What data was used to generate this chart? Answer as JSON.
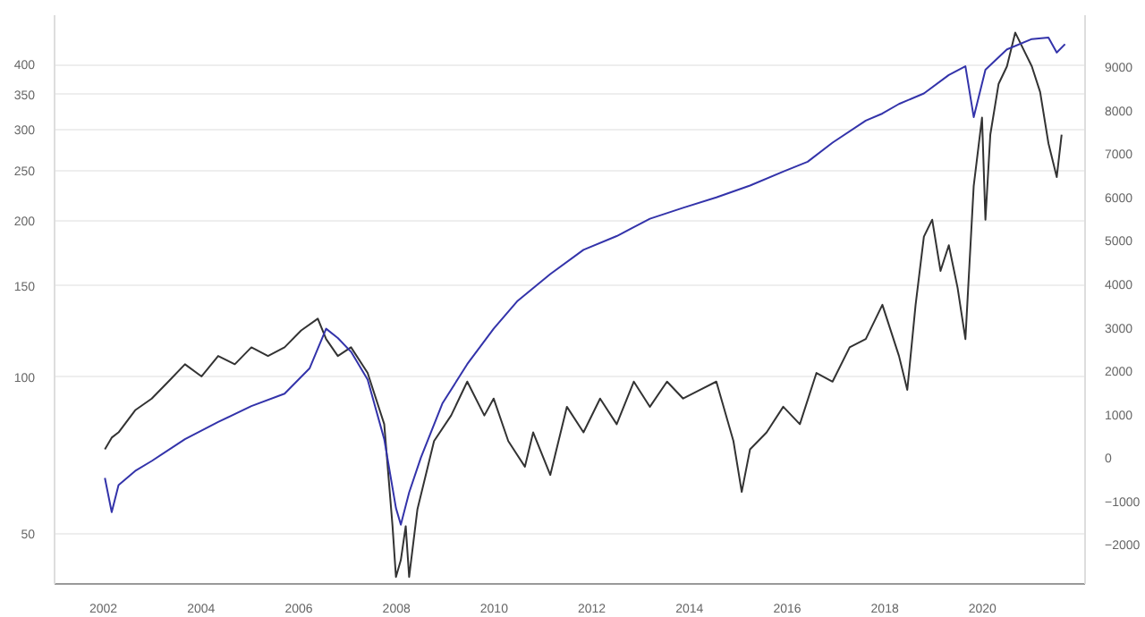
{
  "chart_data": {
    "type": "line",
    "log": "y",
    "grid": "y",
    "xlim": [
      2001.0,
      2022.1
    ],
    "xticks": [
      2002,
      2004,
      2006,
      2008,
      2010,
      2012,
      2014,
      2016,
      2018,
      2020
    ],
    "ylim": [
      40,
      498
    ],
    "yticks": [
      50,
      100,
      150,
      200,
      250,
      300,
      350,
      400
    ],
    "y2lim": [
      -2900,
      10200
    ],
    "y2ticks": [
      -2000,
      -1000,
      0,
      1000,
      2000,
      3000,
      4000,
      5000,
      6000,
      7000,
      8000,
      9000
    ],
    "series": [
      {
        "color": "#333333",
        "axis": "y2",
        "x": [
          2002.03,
          2002.17,
          2002.31,
          2002.65,
          2002.99,
          2003.33,
          2003.67,
          2004.01,
          2004.35,
          2004.69,
          2005.03,
          2005.37,
          2005.71,
          2006.05,
          2006.39,
          2006.56,
          2006.8,
          2007.07,
          2007.41,
          2007.75,
          2007.92,
          2007.99,
          2008.09,
          2008.19,
          2008.26,
          2008.43,
          2008.77,
          2009.12,
          2009.45,
          2009.8,
          2009.99,
          2010.29,
          2010.63,
          2010.8,
          2011.15,
          2011.49,
          2011.83,
          2012.17,
          2012.51,
          2012.86,
          2013.19,
          2013.54,
          2013.87,
          2014.22,
          2014.55,
          2014.9,
          2015.07,
          2015.24,
          2015.58,
          2015.92,
          2016.26,
          2016.6,
          2016.93,
          2017.28,
          2017.61,
          2017.95,
          2018.29,
          2018.46,
          2018.63,
          2018.8,
          2018.97,
          2019.14,
          2019.31,
          2019.49,
          2019.65,
          2019.82,
          2019.99,
          2020.06,
          2020.16,
          2020.33,
          2020.5,
          2020.67,
          2020.84,
          2021.01,
          2021.18,
          2021.35,
          2021.52,
          2021.62
        ],
        "values": [
          200,
          470,
          590,
          1100,
          1370,
          1760,
          2160,
          1880,
          2350,
          2160,
          2550,
          2350,
          2550,
          2940,
          3210,
          2740,
          2350,
          2550,
          1960,
          780,
          -1570,
          -2740,
          -2350,
          -1570,
          -2740,
          -1180,
          390,
          980,
          1760,
          980,
          1370,
          390,
          -200,
          590,
          -390,
          1180,
          590,
          1370,
          780,
          1760,
          1180,
          1760,
          1370,
          1570,
          1760,
          390,
          -780,
          200,
          590,
          1180,
          780,
          1960,
          1760,
          2550,
          2740,
          3530,
          2350,
          1570,
          3530,
          5100,
          5490,
          4310,
          4900,
          3920,
          2740,
          6270,
          7840,
          5490,
          7450,
          8620,
          9020,
          9800,
          9410,
          9020,
          8430,
          7250,
          6470,
          7450
        ]
      },
      {
        "color": "#3333aa",
        "x": [
          2002.03,
          2002.17,
          2002.31,
          2002.65,
          2002.99,
          2003.67,
          2004.35,
          2005.03,
          2005.71,
          2006.22,
          2006.56,
          2006.8,
          2007.07,
          2007.41,
          2007.75,
          2007.99,
          2008.09,
          2008.26,
          2008.5,
          2008.94,
          2009.45,
          2009.99,
          2010.47,
          2011.15,
          2011.83,
          2012.51,
          2013.19,
          2013.87,
          2014.55,
          2015.24,
          2015.92,
          2016.42,
          2016.93,
          2017.61,
          2017.95,
          2018.29,
          2018.8,
          2019.31,
          2019.65,
          2019.82,
          2020.06,
          2020.5,
          2021.01,
          2021.35,
          2021.52,
          2021.69
        ],
        "values": [
          64,
          55,
          62,
          66,
          69,
          76,
          82,
          88,
          93,
          104,
          124,
          119,
          112,
          99,
          76,
          56,
          52,
          60,
          70,
          89,
          106,
          124,
          140,
          158,
          176,
          187,
          202,
          212,
          222,
          234,
          249,
          260,
          283,
          312,
          322,
          336,
          352,
          382,
          397,
          317,
          391,
          428,
          448,
          451,
          422,
          438
        ]
      }
    ]
  }
}
